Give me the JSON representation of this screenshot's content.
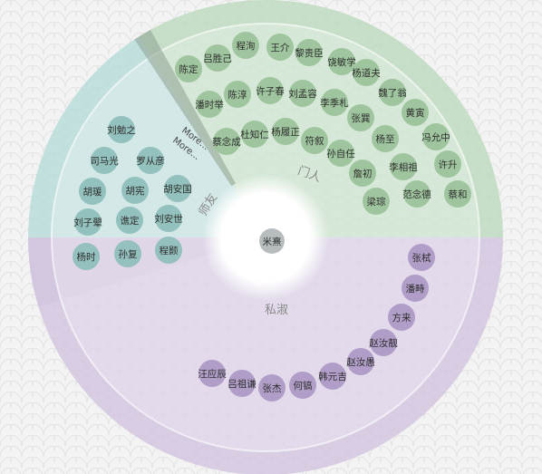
{
  "colors": {
    "background": "#f3f3f3",
    "pattern_stroke": "#e4e4e4",
    "sector_teal": "#b9dcd9",
    "sector_green": "#bedbbf",
    "sector_purple": "#d2c6df",
    "node_teal": "#8fbfba",
    "node_green": "#9cc39b",
    "node_purple": "#ad9bc6",
    "node_center": "#b7bcbf",
    "more_band": "#8ea18f"
  },
  "center": {
    "label": "米熹"
  },
  "more_labels": [
    "More...",
    "More..."
  ],
  "groups": [
    {
      "key": "teacher",
      "label": "师友",
      "color_key": "node_teal",
      "nodes": [
        "刘勉之",
        "司马光",
        "罗从彦",
        "胡瑗",
        "胡宪",
        "胡安国",
        "刘子翚",
        "谯定",
        "刘安世",
        "杨时",
        "孙复",
        "程颢"
      ]
    },
    {
      "key": "disciple",
      "label": "门人",
      "color_key": "node_green",
      "nodes": [
        "陈定",
        "吕胜己",
        "程洵",
        "王介",
        "黎贵臣",
        "饶敏学",
        "杨道夫",
        "潘时举",
        "陈淳",
        "许子春",
        "刘孟容",
        "李季札",
        "魏了翁",
        "黄寅",
        "蔡念成",
        "杜知仁",
        "杨履正",
        "符叙",
        "孙自任",
        "张巽",
        "杨至",
        "冯允中",
        "詹初",
        "李相祖",
        "许升",
        "梁琮",
        "范念德",
        "蔡和"
      ]
    },
    {
      "key": "private",
      "label": "私淑",
      "color_key": "node_purple",
      "nodes": [
        "张栻",
        "潘畤",
        "方来",
        "赵汝靓",
        "赵汝愚",
        "韩元吉",
        "何镐",
        "张杰",
        "吕祖谦",
        "汪应辰"
      ]
    }
  ]
}
